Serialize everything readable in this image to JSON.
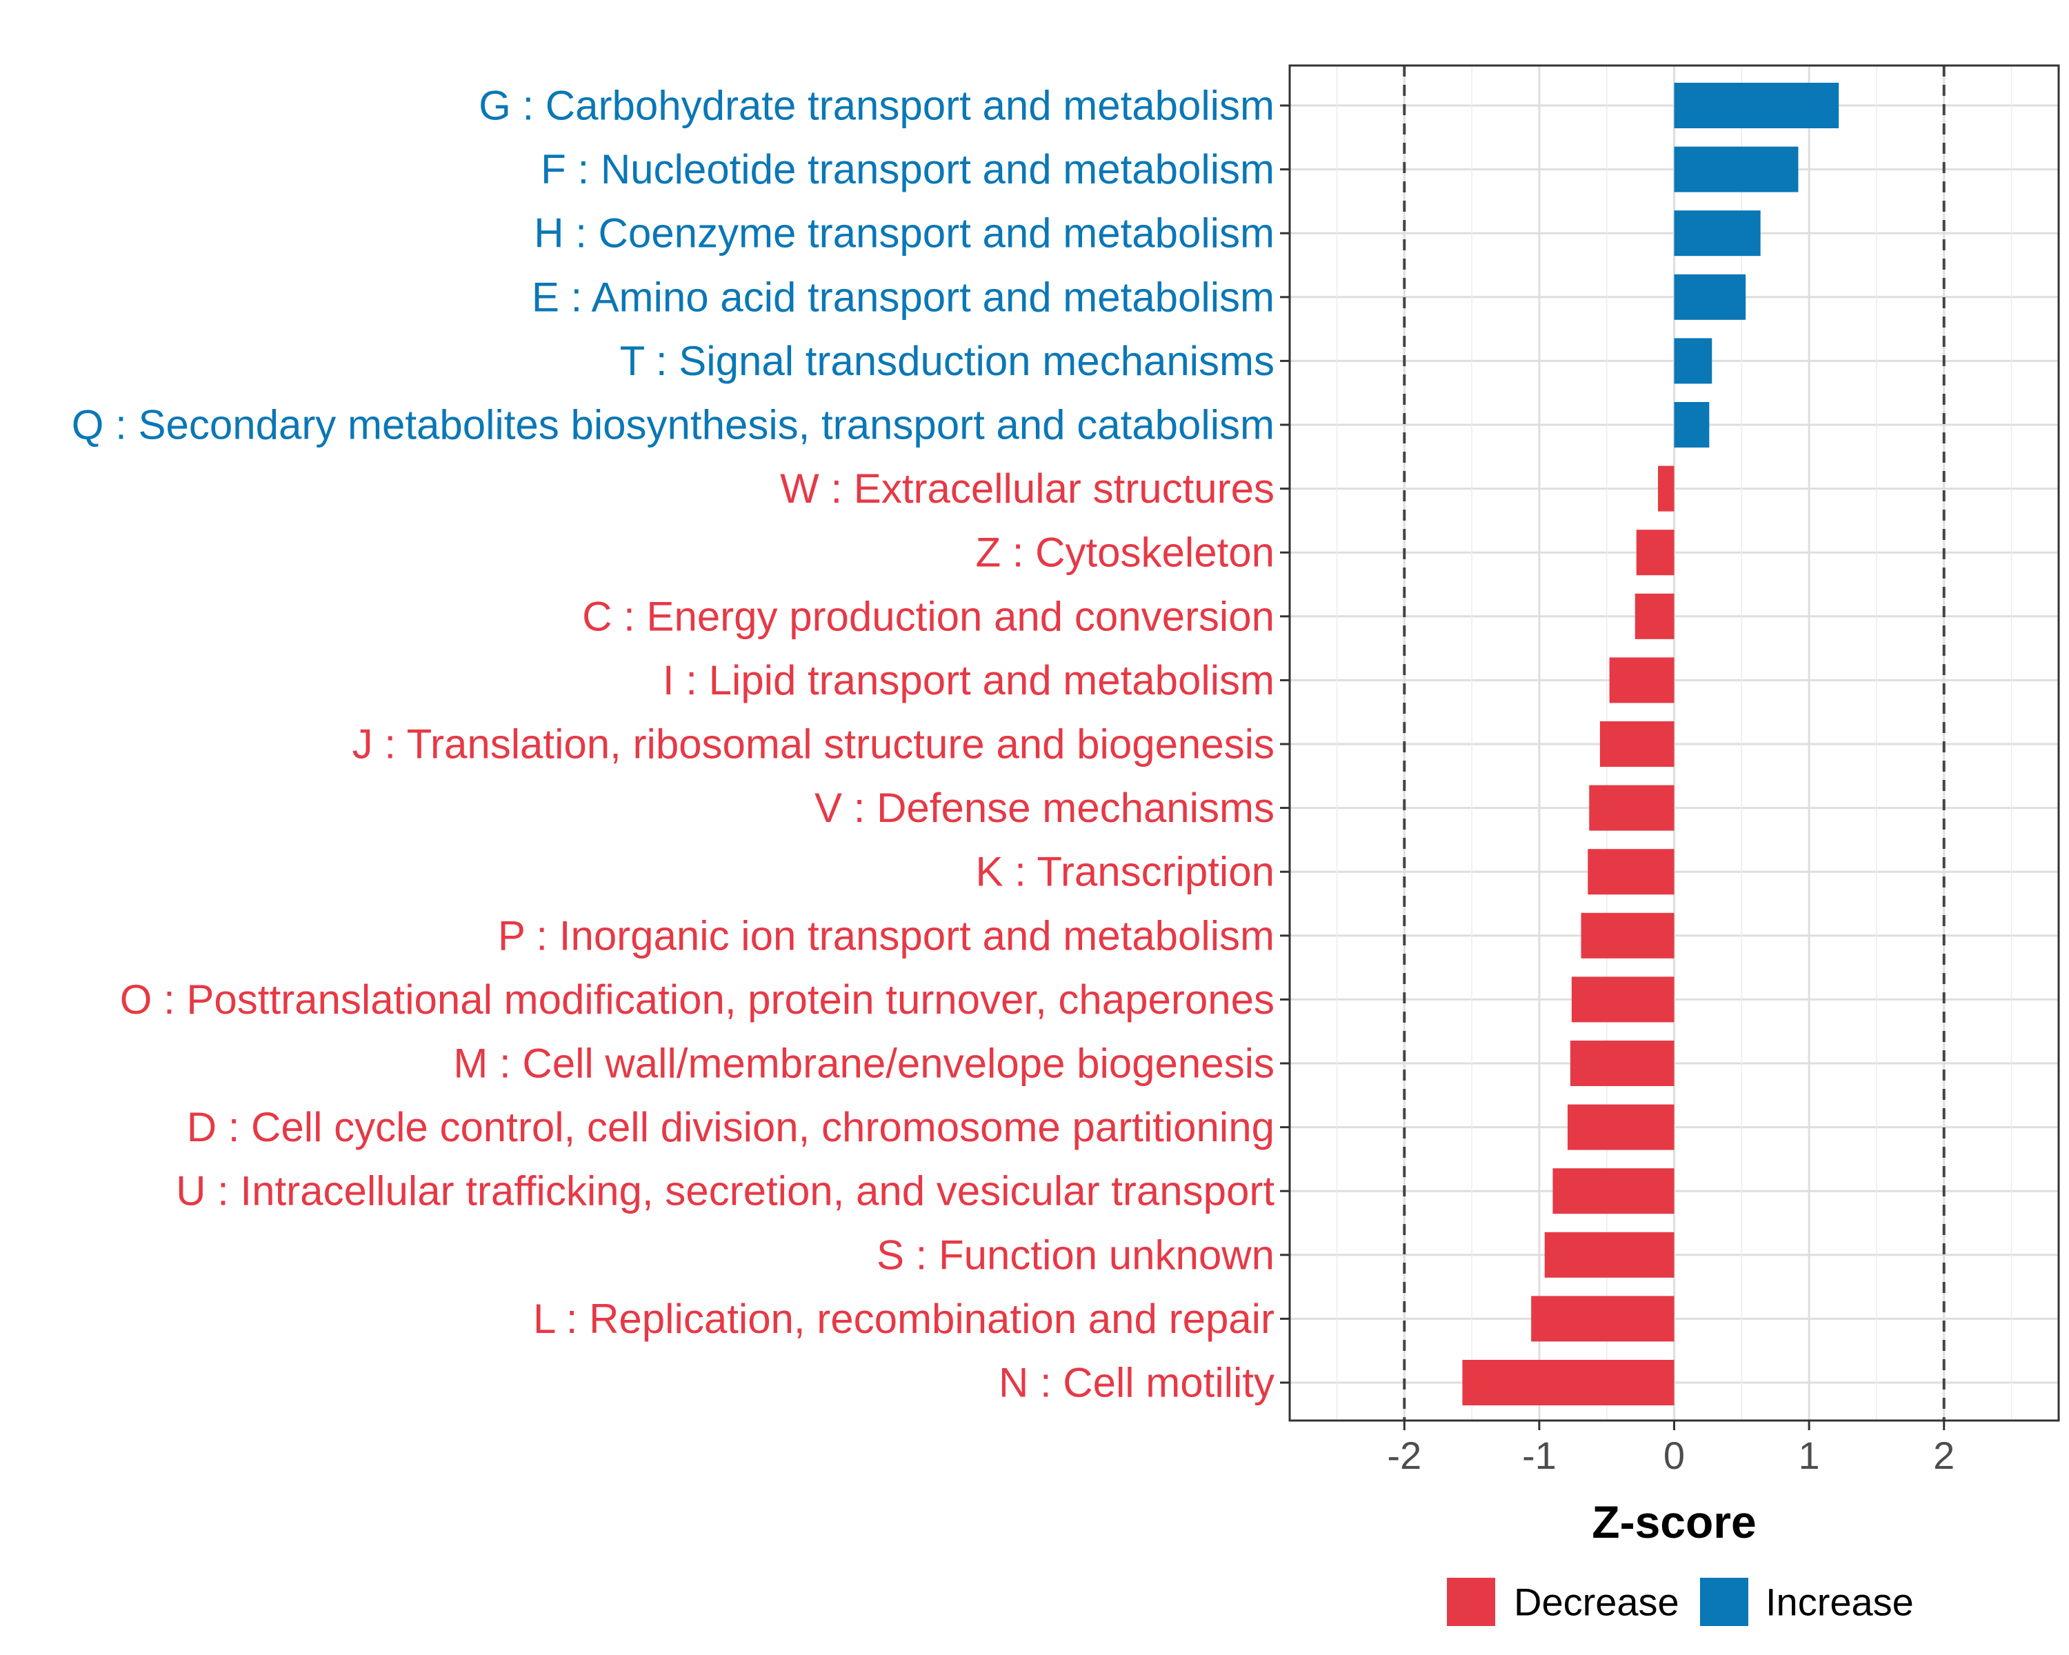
{
  "chart_data": {
    "type": "bar",
    "orientation": "horizontal",
    "xlabel": "Z-score",
    "xlim": [
      -2.85,
      2.85
    ],
    "xticks": [
      -2,
      -1,
      0,
      1,
      2
    ],
    "xtick_labels": [
      "-2",
      "-1",
      "0",
      "1",
      "2"
    ],
    "reference_lines": [
      -2,
      2
    ],
    "grid": true,
    "legend_position": "bottom",
    "categories": [
      "G : Carbohydrate transport and metabolism",
      "F : Nucleotide transport and metabolism",
      "H : Coenzyme transport and metabolism",
      "E : Amino acid transport and metabolism",
      "T : Signal transduction mechanisms",
      "Q : Secondary metabolites biosynthesis, transport and catabolism",
      "W : Extracellular structures",
      "Z : Cytoskeleton",
      "C : Energy production and conversion",
      "I : Lipid transport and metabolism",
      "J : Translation, ribosomal structure and biogenesis",
      "V : Defense mechanisms",
      "K : Transcription",
      "P : Inorganic ion transport and metabolism",
      "O : Posttranslational modification, protein turnover, chaperones",
      "M : Cell wall/membrane/envelope biogenesis",
      "D : Cell cycle control, cell division, chromosome partitioning",
      "U : Intracellular trafficking, secretion, and vesicular transport",
      "S : Function unknown",
      "L : Replication, recombination and repair",
      "N : Cell motility"
    ],
    "values": [
      1.22,
      0.92,
      0.64,
      0.53,
      0.28,
      0.26,
      -0.12,
      -0.28,
      -0.29,
      -0.48,
      -0.55,
      -0.63,
      -0.64,
      -0.69,
      -0.76,
      -0.77,
      -0.79,
      -0.9,
      -0.96,
      -1.06,
      -1.57
    ],
    "groups": [
      "Increase",
      "Increase",
      "Increase",
      "Increase",
      "Increase",
      "Increase",
      "Decrease",
      "Decrease",
      "Decrease",
      "Decrease",
      "Decrease",
      "Decrease",
      "Decrease",
      "Decrease",
      "Decrease",
      "Decrease",
      "Decrease",
      "Decrease",
      "Decrease",
      "Decrease",
      "Decrease"
    ],
    "legend": [
      {
        "name": "Decrease",
        "color": "#e63946"
      },
      {
        "name": "Increase",
        "color": "#0a77b6"
      }
    ]
  }
}
